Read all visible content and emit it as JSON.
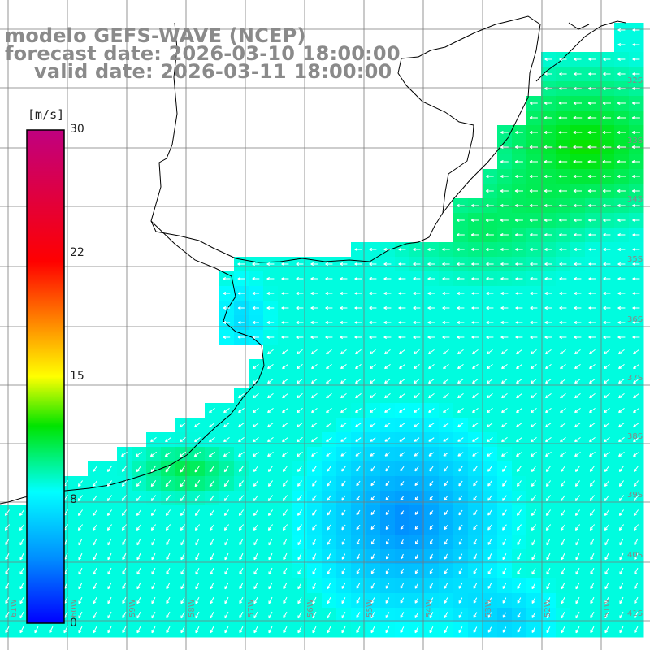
{
  "title": {
    "model": "modelo GEFS-WAVE (NCEP)",
    "forecast": "forecast date: 2026-03-10 18:00:00",
    "valid": "valid date: 2026-03-11 18:00:00"
  },
  "colorbar": {
    "unit": "[m/s]",
    "min": 0,
    "max": 30,
    "ticks": [
      "30",
      "22",
      "15",
      "8",
      "0"
    ],
    "tick_values": [
      30,
      22,
      15,
      8,
      0
    ],
    "stops": [
      {
        "v": 0,
        "color": "#0000ff"
      },
      {
        "v": 4,
        "color": "#0090ff"
      },
      {
        "v": 8,
        "color": "#00ffff"
      },
      {
        "v": 12,
        "color": "#00e400"
      },
      {
        "v": 15,
        "color": "#ffff00"
      },
      {
        "v": 22,
        "color": "#ff0000"
      },
      {
        "v": 30,
        "color": "#c00080"
      }
    ]
  },
  "lat_labels": [
    "32S",
    "33S",
    "34S",
    "35S",
    "36S",
    "37S",
    "38S",
    "39S",
    "40S",
    "41S"
  ],
  "lon_labels": [
    "61W",
    "60W",
    "59W",
    "58W",
    "57W",
    "56W",
    "55W",
    "54W",
    "53W",
    "52W",
    "51W"
  ],
  "colors": {
    "grid": "#7a7a7a",
    "coast": "#000000",
    "arrow": "#ffffff",
    "title": "#8a8a8a",
    "background": "#ffffff"
  }
}
